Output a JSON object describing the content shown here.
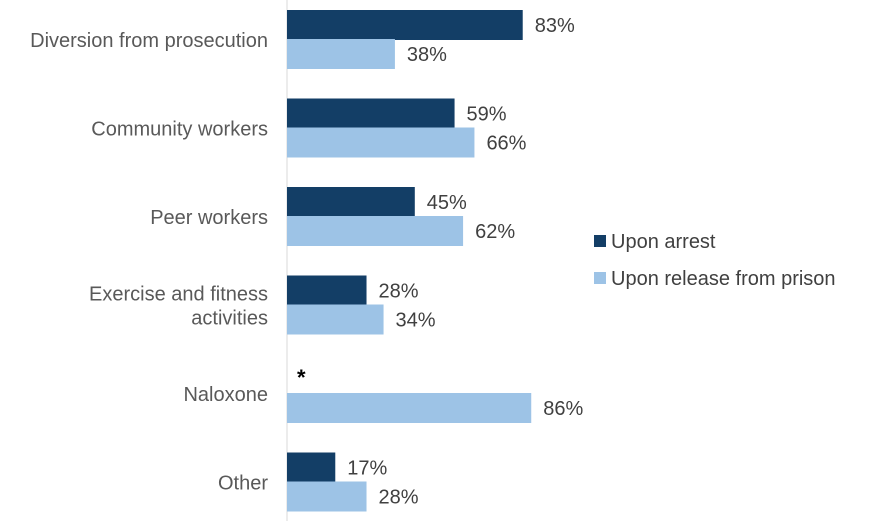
{
  "chart_data": {
    "type": "bar",
    "orientation": "horizontal",
    "title": "",
    "xlabel": "",
    "ylabel": "",
    "xlim": [
      0,
      100
    ],
    "grid": false,
    "legend_position": "right",
    "categories": [
      [
        "Diversion from prosecution"
      ],
      [
        "Community workers"
      ],
      [
        "Peer workers"
      ],
      [
        "Exercise and fitness",
        "activities"
      ],
      [
        "Naloxone"
      ],
      [
        "Other"
      ]
    ],
    "series": [
      {
        "name": "Upon arrest",
        "color": "#133E66",
        "values": [
          83,
          59,
          45,
          28,
          null,
          17
        ],
        "labels": [
          "83%",
          "59%",
          "45%",
          "28%",
          "*",
          "17%"
        ]
      },
      {
        "name": "Upon release from prison",
        "color": "#9DC3E6",
        "values": [
          38,
          66,
          62,
          34,
          86,
          28
        ],
        "labels": [
          "38%",
          "66%",
          "62%",
          "34%",
          "86%",
          "28%"
        ]
      }
    ]
  }
}
